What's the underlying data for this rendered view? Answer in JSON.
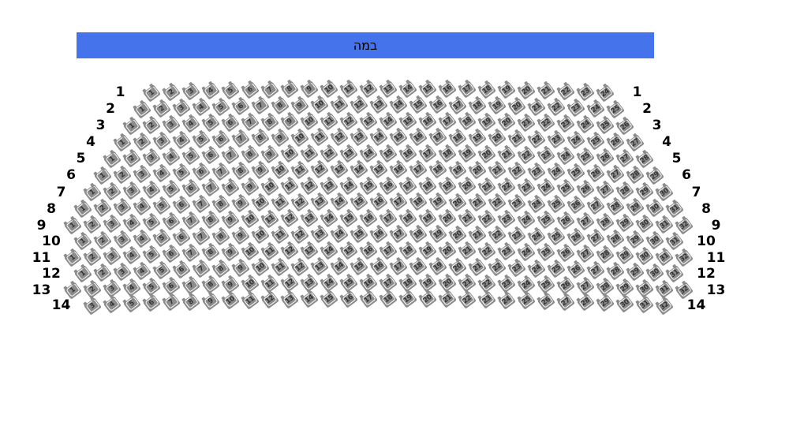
{
  "stage": {
    "label": "במה"
  },
  "colors": {
    "stage_bg": "#4573EC",
    "stage_text": "#000000",
    "seat_fill": "#8C8C8C",
    "seat_glyph": "#FFFFFF",
    "seat_number": "#333333",
    "row_label": "#000000"
  },
  "seating": {
    "row_label_side_left": true,
    "row_label_side_right": true,
    "rows": [
      {
        "row": "1",
        "first_seat": 1,
        "last_seat": 24
      },
      {
        "row": "2",
        "first_seat": 1,
        "last_seat": 25
      },
      {
        "row": "3",
        "first_seat": 1,
        "last_seat": 26
      },
      {
        "row": "4",
        "first_seat": 1,
        "last_seat": 27
      },
      {
        "row": "5",
        "first_seat": 1,
        "last_seat": 28
      },
      {
        "row": "6",
        "first_seat": 1,
        "last_seat": 29
      },
      {
        "row": "7",
        "first_seat": 1,
        "last_seat": 30
      },
      {
        "row": "8",
        "first_seat": 1,
        "last_seat": 31
      },
      {
        "row": "9",
        "first_seat": 1,
        "last_seat": 32
      },
      {
        "row": "10",
        "first_seat": 1,
        "last_seat": 31
      },
      {
        "row": "11",
        "first_seat": 1,
        "last_seat": 32
      },
      {
        "row": "12",
        "first_seat": 1,
        "last_seat": 31
      },
      {
        "row": "13",
        "first_seat": 1,
        "last_seat": 32
      },
      {
        "row": "14",
        "first_seat": 3,
        "last_seat": 32
      }
    ]
  }
}
